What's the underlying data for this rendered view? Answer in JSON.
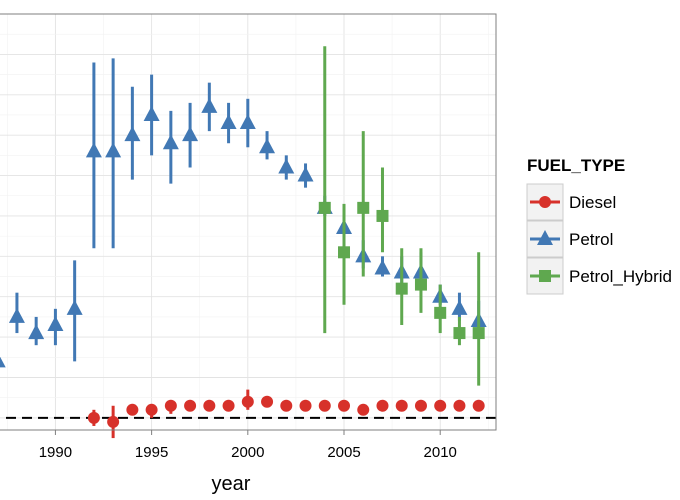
{
  "chart_data": {
    "type": "scatter",
    "title": "",
    "xlabel": "year",
    "ylabel": "",
    "x_ticks": [
      1990,
      1995,
      2000,
      2005,
      2010
    ],
    "xlim": [
      1986.6,
      2012.9
    ],
    "ylim": [
      -3,
      100
    ],
    "y_tick_values": [
      0,
      10,
      20,
      30,
      40,
      50,
      60,
      70,
      80,
      90,
      100
    ],
    "grid": true,
    "reference_line": {
      "y": 0,
      "style": "dashed",
      "color": "#000000"
    },
    "legend": {
      "title": "FUEL_TYPE",
      "position": "right"
    },
    "series": [
      {
        "name": "Diesel",
        "color": "#D7312A",
        "marker": "circle",
        "points": [
          {
            "x": 1992,
            "y": 0,
            "lo": -2,
            "hi": 2
          },
          {
            "x": 1993,
            "y": -1,
            "lo": -5,
            "hi": 3
          },
          {
            "x": 1994,
            "y": 2,
            "lo": 1,
            "hi": 3
          },
          {
            "x": 1995,
            "y": 2,
            "lo": 0,
            "hi": 3
          },
          {
            "x": 1996,
            "y": 3,
            "lo": 1,
            "hi": 4
          },
          {
            "x": 1997,
            "y": 3,
            "lo": 2,
            "hi": 4
          },
          {
            "x": 1998,
            "y": 3,
            "lo": 2,
            "hi": 4
          },
          {
            "x": 1999,
            "y": 3,
            "lo": 2,
            "hi": 4
          },
          {
            "x": 2000,
            "y": 4,
            "lo": 2,
            "hi": 7
          },
          {
            "x": 2001,
            "y": 4,
            "lo": 3,
            "hi": 5
          },
          {
            "x": 2002,
            "y": 3,
            "lo": 3,
            "hi": 4
          },
          {
            "x": 2003,
            "y": 3,
            "lo": 3,
            "hi": 4
          },
          {
            "x": 2004,
            "y": 3,
            "lo": 3,
            "hi": 4
          },
          {
            "x": 2005,
            "y": 3,
            "lo": 3,
            "hi": 4
          },
          {
            "x": 2006,
            "y": 2,
            "lo": 2,
            "hi": 3
          },
          {
            "x": 2007,
            "y": 3,
            "lo": 2,
            "hi": 4
          },
          {
            "x": 2008,
            "y": 3,
            "lo": 3,
            "hi": 4
          },
          {
            "x": 2009,
            "y": 3,
            "lo": 3,
            "hi": 4
          },
          {
            "x": 2010,
            "y": 3,
            "lo": 3,
            "hi": 4
          },
          {
            "x": 2011,
            "y": 3,
            "lo": 2,
            "hi": 3
          },
          {
            "x": 2012,
            "y": 3,
            "lo": 3,
            "hi": 4
          }
        ]
      },
      {
        "name": "Petrol",
        "color": "#4178B4",
        "marker": "triangle",
        "points": [
          {
            "x": 1987,
            "y": 14,
            "lo": 9,
            "hi": 19
          },
          {
            "x": 1988,
            "y": 25,
            "lo": 21,
            "hi": 31
          },
          {
            "x": 1989,
            "y": 21,
            "lo": 18,
            "hi": 25
          },
          {
            "x": 1990,
            "y": 23,
            "lo": 18,
            "hi": 27
          },
          {
            "x": 1991,
            "y": 27,
            "lo": 14,
            "hi": 39
          },
          {
            "x": 1992,
            "y": 66,
            "lo": 42,
            "hi": 88
          },
          {
            "x": 1993,
            "y": 66,
            "lo": 42,
            "hi": 89
          },
          {
            "x": 1994,
            "y": 70,
            "lo": 59,
            "hi": 82
          },
          {
            "x": 1995,
            "y": 75,
            "lo": 65,
            "hi": 85
          },
          {
            "x": 1996,
            "y": 68,
            "lo": 58,
            "hi": 76
          },
          {
            "x": 1997,
            "y": 70,
            "lo": 62,
            "hi": 78
          },
          {
            "x": 1998,
            "y": 77,
            "lo": 71,
            "hi": 83
          },
          {
            "x": 1999,
            "y": 73,
            "lo": 68,
            "hi": 78
          },
          {
            "x": 2000,
            "y": 73,
            "lo": 67,
            "hi": 79
          },
          {
            "x": 2001,
            "y": 67,
            "lo": 64,
            "hi": 71
          },
          {
            "x": 2002,
            "y": 62,
            "lo": 59,
            "hi": 65
          },
          {
            "x": 2003,
            "y": 60,
            "lo": 57,
            "hi": 63
          },
          {
            "x": 2004,
            "y": 52,
            "lo": 50,
            "hi": 55
          },
          {
            "x": 2005,
            "y": 47,
            "lo": 44,
            "hi": 50
          },
          {
            "x": 2006,
            "y": 40,
            "lo": 37,
            "hi": 44
          },
          {
            "x": 2007,
            "y": 37,
            "lo": 35,
            "hi": 40
          },
          {
            "x": 2008,
            "y": 36,
            "lo": 33,
            "hi": 40
          },
          {
            "x": 2009,
            "y": 36,
            "lo": 32,
            "hi": 41
          },
          {
            "x": 2010,
            "y": 30,
            "lo": 28,
            "hi": 33
          },
          {
            "x": 2011,
            "y": 27,
            "lo": 24,
            "hi": 31
          },
          {
            "x": 2012,
            "y": 24,
            "lo": 20,
            "hi": 29
          }
        ]
      },
      {
        "name": "Petrol_Hybrid",
        "color": "#5FA84F",
        "marker": "square",
        "points": [
          {
            "x": 2004,
            "y": 52,
            "lo": 21,
            "hi": 92
          },
          {
            "x": 2005,
            "y": 41,
            "lo": 28,
            "hi": 53
          },
          {
            "x": 2006,
            "y": 52,
            "lo": 35,
            "hi": 71
          },
          {
            "x": 2007,
            "y": 50,
            "lo": 41,
            "hi": 62
          },
          {
            "x": 2008,
            "y": 32,
            "lo": 23,
            "hi": 42
          },
          {
            "x": 2009,
            "y": 33,
            "lo": 26,
            "hi": 42
          },
          {
            "x": 2010,
            "y": 26,
            "lo": 21,
            "hi": 33
          },
          {
            "x": 2011,
            "y": 21,
            "lo": 18,
            "hi": 25
          },
          {
            "x": 2012,
            "y": 21,
            "lo": 8,
            "hi": 41
          }
        ]
      }
    ]
  }
}
